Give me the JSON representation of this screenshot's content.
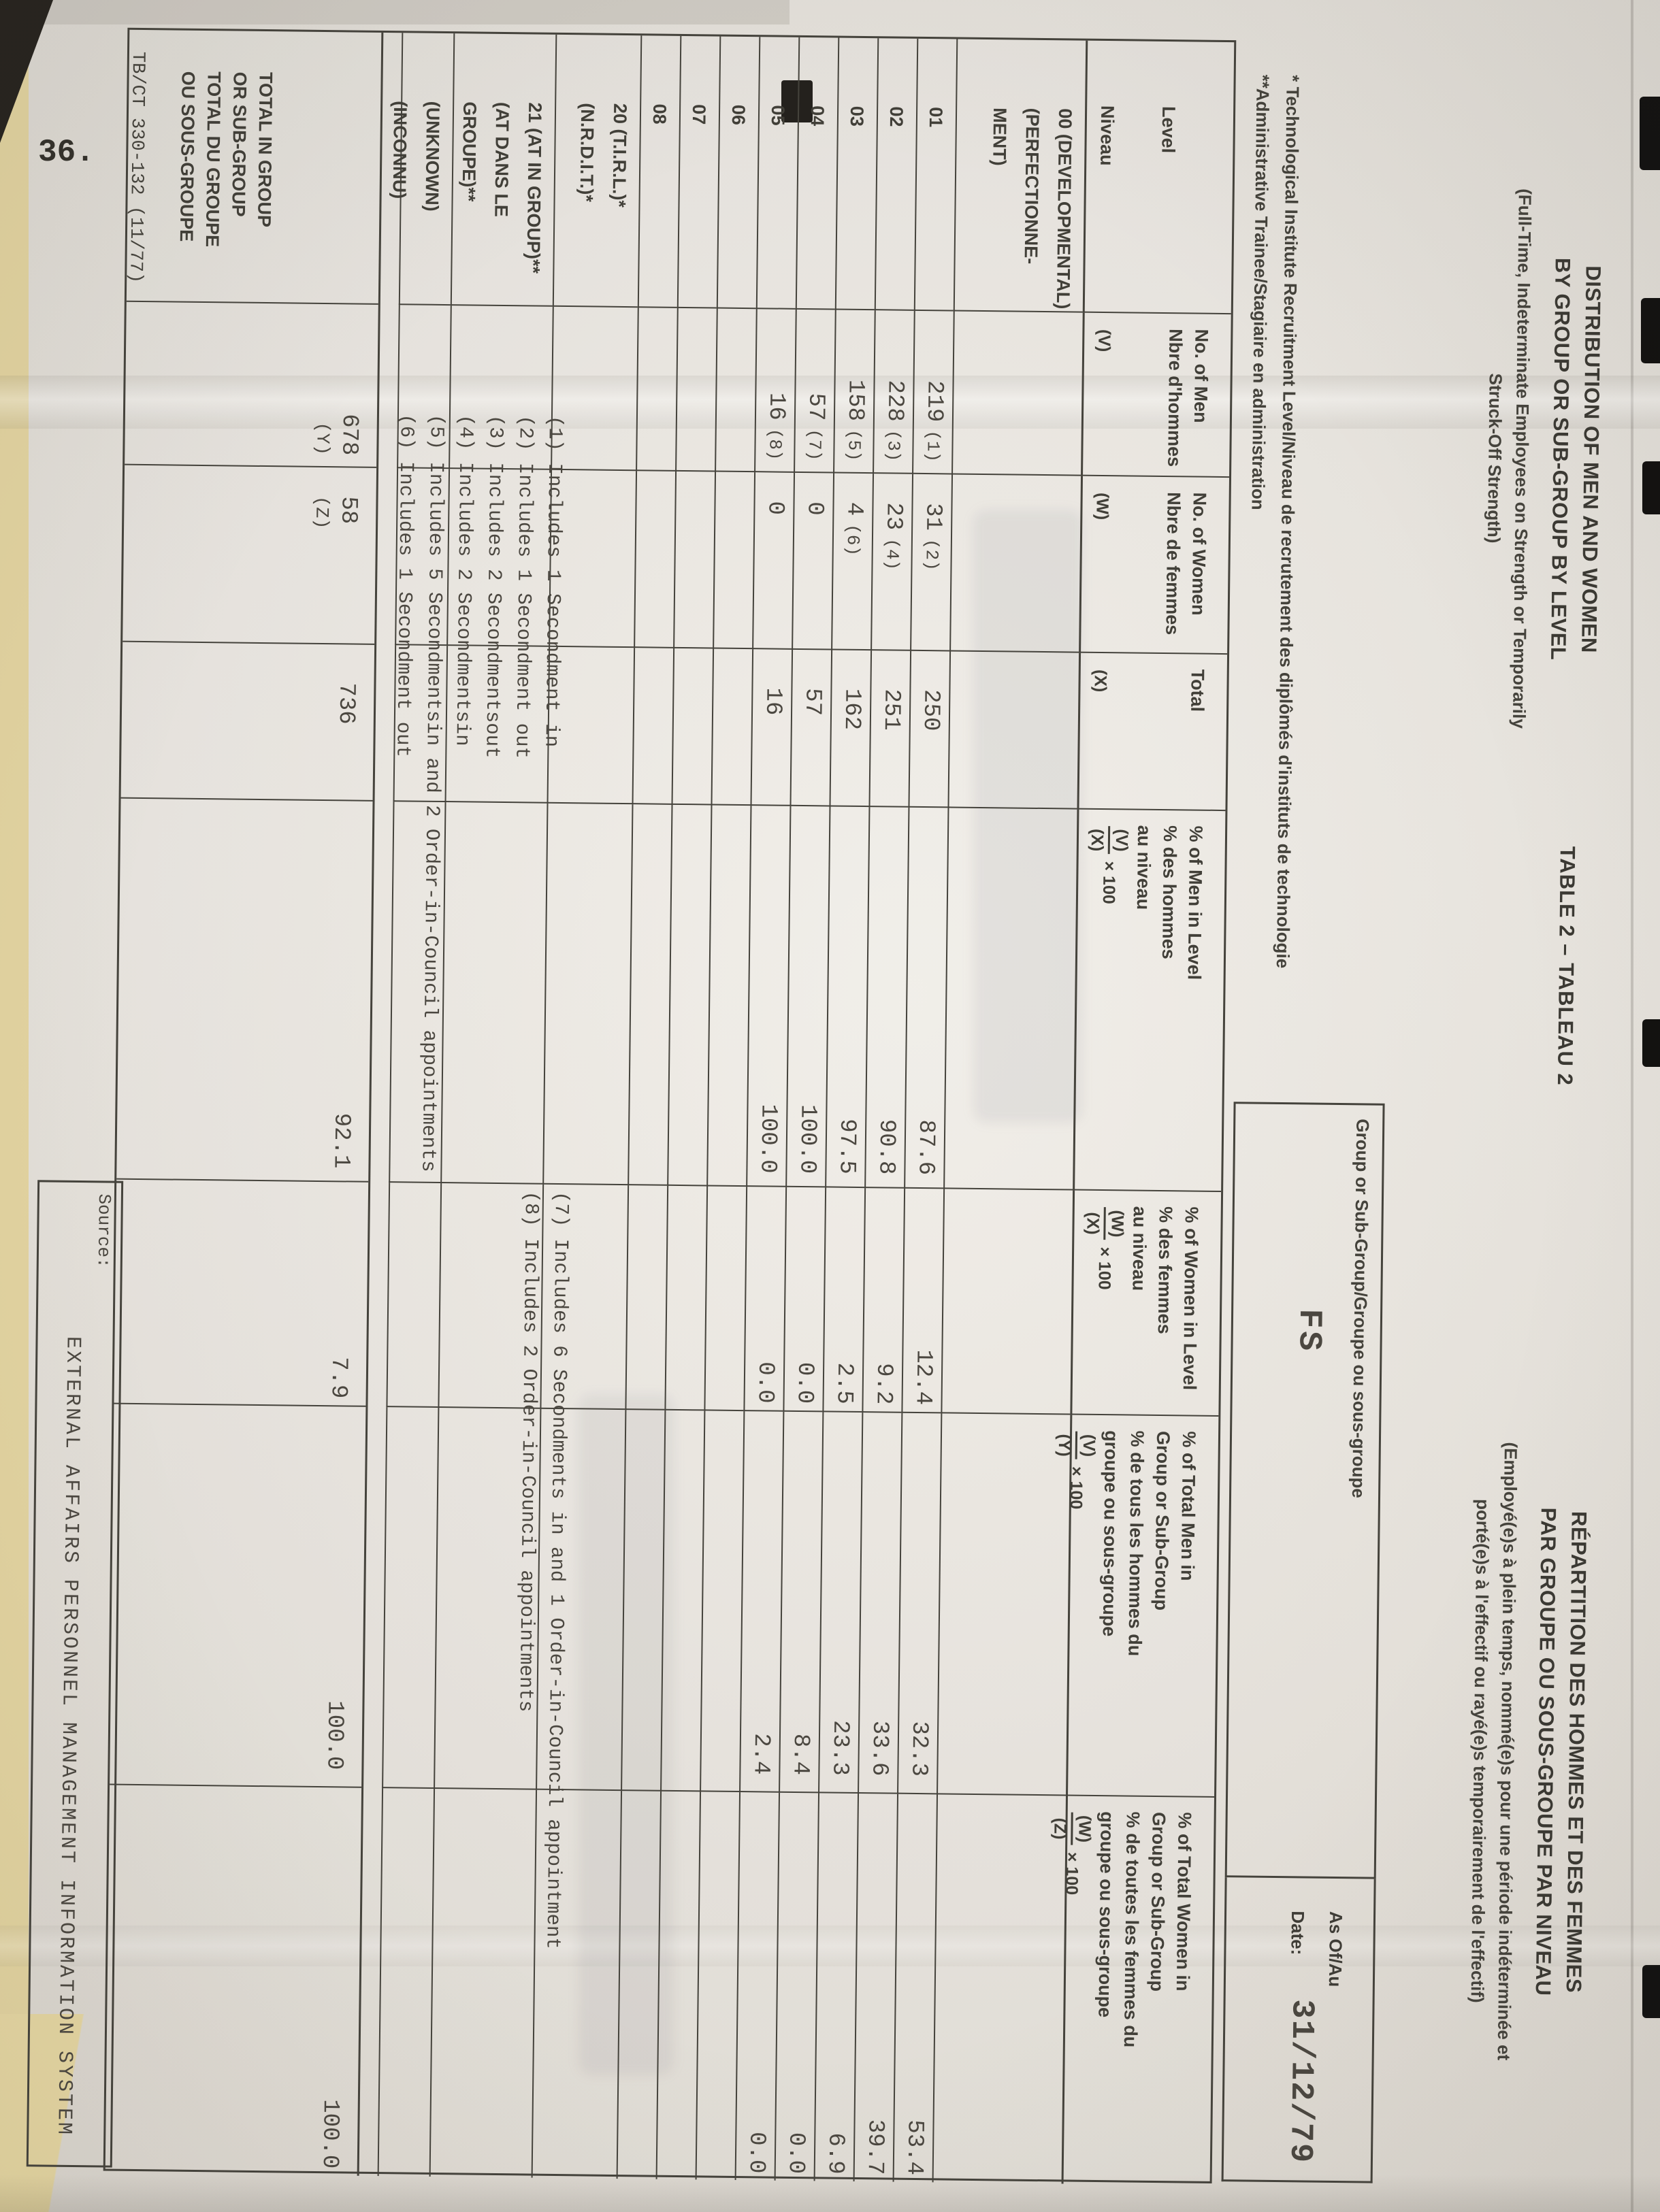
{
  "page": {
    "number": "36.",
    "form_number": "TB/CT 330-132 (11/77)"
  },
  "title": {
    "table_label": "TABLE 2 – TABLEAU 2",
    "en": {
      "line1": "DISTRIBUTION OF MEN AND WOMEN",
      "line2": "BY GROUP OR SUB-GROUP BY LEVEL",
      "sub1": "(Full-Time, Indeterminate Employees on Strength or Temporarily",
      "sub2": "Struck-Off Strength)"
    },
    "fr": {
      "line1": "RÉPARTITION DES HOMMES ET DES FEMMES",
      "line2": "PAR GROUPE OU SOUS-GROUPE PAR NIVEAU",
      "sub1": "(Employé(e)s à plein temps, nommé(e)s pour une période indéterminée et",
      "sub2": "porté(e)s à l'effectif ou rayé(e)s temporairement de l'effectif)"
    }
  },
  "star_notes": [
    "* Technological Institute Recruitment Level/Niveau de recrutement des diplômés d'instituts de technologie",
    "**Administrative Trainee/Stagiaire en administration"
  ],
  "group_box": {
    "label": "Group or Sub-Group/Groupe ou sous-groupe",
    "value": "FS"
  },
  "date_box": {
    "label_line1": "As Of/Au",
    "label_line2": "Date:",
    "value": "31/12/79"
  },
  "table": {
    "columns": [
      {
        "key": "level",
        "lines": [
          "Level",
          "Niveau"
        ]
      },
      {
        "key": "men",
        "lines": [
          "No. of Men",
          "Nbre d'hommes"
        ],
        "sub": "(V)"
      },
      {
        "key": "women",
        "lines": [
          "No. of Women",
          "Nbre de femmes"
        ],
        "sub": "(W)"
      },
      {
        "key": "total",
        "lines": [
          "Total"
        ],
        "sub": "(X)"
      },
      {
        "key": "pct_men",
        "lines": [
          "% of Men in Level",
          "% des hommes",
          "au niveau"
        ],
        "formula": {
          "num": "(V)",
          "den": "(X)",
          "mult": "× 100"
        }
      },
      {
        "key": "pct_women",
        "lines": [
          "% of Women in Level",
          "% des femmes",
          "au niveau"
        ],
        "formula": {
          "num": "(W)",
          "den": "(X)",
          "mult": "× 100"
        }
      },
      {
        "key": "pct_total_men",
        "lines": [
          "% of Total Men in",
          "Group or Sub-Group",
          "% de tous les hommes du",
          "groupe ou sous-groupe"
        ],
        "formula": {
          "num": "(V)",
          "den": "(Y)",
          "mult": "× 100"
        }
      },
      {
        "key": "pct_total_women",
        "lines": [
          "% of Total Women in",
          "Group or Sub-Group",
          "% de toutes les femmes du",
          "groupe ou sous-groupe"
        ],
        "formula": {
          "num": "(W)",
          "den": "(Z)",
          "mult": "× 100"
        }
      }
    ],
    "rows": [
      {
        "id": "00",
        "level_lines": [
          "00 (DEVELOPMENTAL)",
          "(PERFECTIONNE-",
          "MENT)"
        ],
        "men": "",
        "men_note": "",
        "women": "",
        "women_note": "",
        "total": "",
        "pct_men": "",
        "pct_women": "",
        "pct_total_men": "",
        "pct_total_women": ""
      },
      {
        "id": "01",
        "level_lines": [
          "01"
        ],
        "men": "219",
        "men_note": "(1)",
        "women": "31",
        "women_note": "(2)",
        "total": "250",
        "pct_men": "87.6",
        "pct_women": "12.4",
        "pct_total_men": "32.3",
        "pct_total_women": "53.4"
      },
      {
        "id": "02",
        "level_lines": [
          "02"
        ],
        "men": "228",
        "men_note": "(3)",
        "women": "23",
        "women_note": "(4)",
        "total": "251",
        "pct_men": "90.8",
        "pct_women": "9.2",
        "pct_total_men": "33.6",
        "pct_total_women": "39.7"
      },
      {
        "id": "03",
        "level_lines": [
          "03"
        ],
        "men": "158",
        "men_note": "(5)",
        "women": "4",
        "women_note": "(6)",
        "total": "162",
        "pct_men": "97.5",
        "pct_women": "2.5",
        "pct_total_men": "23.3",
        "pct_total_women": "6.9"
      },
      {
        "id": "04",
        "level_lines": [
          "04"
        ],
        "men": "57",
        "men_note": "(7)",
        "women": "0",
        "women_note": "",
        "total": "57",
        "pct_men": "100.0",
        "pct_women": "0.0",
        "pct_total_men": "8.4",
        "pct_total_women": "0.0"
      },
      {
        "id": "05",
        "level_lines": [
          "05"
        ],
        "men": "16",
        "men_note": "(8)",
        "women": "0",
        "women_note": "",
        "total": "16",
        "pct_men": "100.0",
        "pct_women": "0.0",
        "pct_total_men": "2.4",
        "pct_total_women": "0.0"
      },
      {
        "id": "06",
        "level_lines": [
          "06"
        ],
        "men": "",
        "men_note": "",
        "women": "",
        "women_note": "",
        "total": "",
        "pct_men": "",
        "pct_women": "",
        "pct_total_men": "",
        "pct_total_women": ""
      },
      {
        "id": "07",
        "level_lines": [
          "07"
        ],
        "men": "",
        "men_note": "",
        "women": "",
        "women_note": "",
        "total": "",
        "pct_men": "",
        "pct_women": "",
        "pct_total_men": "",
        "pct_total_women": ""
      },
      {
        "id": "08",
        "level_lines": [
          "08"
        ],
        "men": "",
        "men_note": "",
        "women": "",
        "women_note": "",
        "total": "",
        "pct_men": "",
        "pct_women": "",
        "pct_total_men": "",
        "pct_total_women": ""
      },
      {
        "id": "20",
        "level_lines": [
          "20 (T.I.R.L.)*",
          "(N.R.D.I.T.)*"
        ],
        "men": "",
        "men_note": "",
        "women": "",
        "women_note": "",
        "total": "",
        "pct_men": "",
        "pct_women": "",
        "pct_total_men": "",
        "pct_total_women": ""
      },
      {
        "id": "21",
        "level_lines": [
          "21 (AT IN GROUP)**",
          "(AT DANS LE",
          "GROUPE)**"
        ],
        "men": "",
        "men_note": "",
        "women": "",
        "women_note": "",
        "total": "",
        "pct_men": "",
        "pct_women": "",
        "pct_total_men": "",
        "pct_total_women": ""
      },
      {
        "id": "unknown",
        "level_lines": [
          "(UNKNOWN)",
          "(INCONNU)"
        ],
        "men": "",
        "men_note": "",
        "women": "",
        "women_note": "",
        "total": "",
        "pct_men": "",
        "pct_women": "",
        "pct_total_men": "",
        "pct_total_women": ""
      }
    ],
    "total_row": {
      "id": "total",
      "level_lines": [
        "TOTAL IN GROUP",
        "OR SUB-GROUP",
        "TOTAL DU GROUPE",
        "OU SOUS-GROUPE"
      ],
      "men": "678",
      "men_sub": "(Y)",
      "women": "58",
      "women_sub": "(Z)",
      "total": "736",
      "total_sub": "",
      "pct_men": "92.1",
      "pct_women": "7.9",
      "pct_total_men": "100.0",
      "pct_total_women": "100.0"
    },
    "footnotes_left": [
      "(1) Includes 1 Secondment in",
      "(2) Includes 1 Secondment out",
      "(3) Includes 2 Secondmentsout",
      "(4) Includes 2 Secondmentsin",
      "(5) Includes 5 Secondmentsin and 2 Order-in-Council appointments",
      "(6) Includes 1 Secondment out"
    ],
    "footnotes_right": [
      "(7) Includes 6 Secondments in and 1 Order-in-Council appointment",
      "(8) Includes 2 Order-in-Council appointments"
    ]
  },
  "source": {
    "label": "Source:",
    "value": "EXTERNAL AFFAIRS PERSONNEL MANAGEMENT INFORMATION SYSTEM"
  }
}
